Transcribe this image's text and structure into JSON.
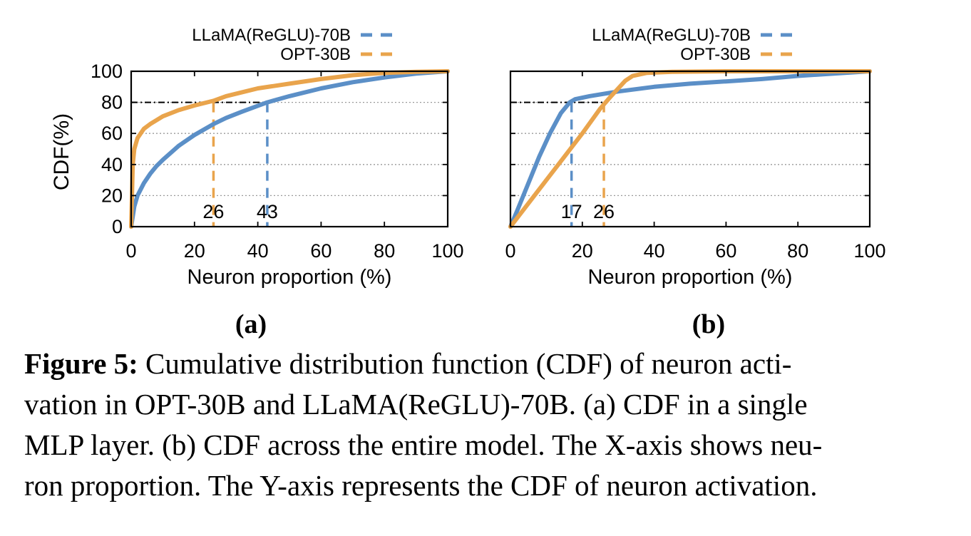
{
  "chart_data": [
    {
      "type": "line",
      "panel_label": "(a)",
      "xlabel": "Neuron proportion (%)",
      "ylabel": "CDF(%)",
      "xlim": [
        0,
        100
      ],
      "ylim": [
        0,
        100
      ],
      "xticks": [
        "0",
        "20",
        "40",
        "60",
        "80",
        "100"
      ],
      "yticks": [
        "0",
        "20",
        "40",
        "60",
        "80",
        "100"
      ],
      "grid": "horizontal dotted",
      "legend": "top-left",
      "series": [
        {
          "name": "LLaMA(ReGLU)-70B",
          "color": "#5b8fc7",
          "x": [
            0,
            1,
            2,
            4,
            6,
            8,
            10,
            15,
            20,
            26,
            30,
            35,
            43,
            50,
            60,
            70,
            80,
            90,
            100
          ],
          "y": [
            0,
            13,
            20,
            28,
            34,
            39,
            43,
            52,
            59,
            66,
            70,
            74,
            80,
            84,
            89,
            93,
            96,
            98.5,
            100
          ]
        },
        {
          "name": "OPT-30B",
          "color": "#e9a44c",
          "x": [
            0,
            0.5,
            1,
            2,
            4,
            6,
            10,
            15,
            20,
            26,
            30,
            40,
            50,
            60,
            70,
            80,
            90,
            100
          ],
          "y": [
            0,
            40,
            50,
            57,
            63,
            66,
            71,
            75,
            78,
            81,
            84,
            89,
            92,
            95,
            97.5,
            99,
            99.7,
            100
          ]
        }
      ],
      "marker_lines": [
        {
          "x": 26,
          "y": 80,
          "label": "26",
          "series": "OPT-30B"
        },
        {
          "x": 43,
          "y": 80,
          "label": "43",
          "series": "LLaMA(ReGLU)-70B"
        }
      ]
    },
    {
      "type": "line",
      "panel_label": "(b)",
      "xlabel": "Neuron proportion (%)",
      "ylabel": "",
      "xlim": [
        0,
        100
      ],
      "ylim": [
        0,
        100
      ],
      "xticks": [
        "0",
        "20",
        "40",
        "60",
        "80",
        "100"
      ],
      "yticks": [],
      "grid": "horizontal dotted",
      "legend": "top-left",
      "series": [
        {
          "name": "LLaMA(ReGLU)-70B",
          "color": "#5b8fc7",
          "x": [
            0,
            2,
            5,
            8,
            11,
            14,
            16.5,
            18,
            22,
            30,
            40,
            50,
            60,
            70,
            80,
            90,
            100
          ],
          "y": [
            0,
            11,
            28,
            45,
            60,
            73,
            80,
            82,
            84,
            87,
            90,
            92,
            93.5,
            95,
            97,
            98.5,
            100
          ]
        },
        {
          "name": "OPT-30B",
          "color": "#e9a44c",
          "x": [
            0,
            5,
            10,
            15,
            20,
            25,
            28,
            30,
            32,
            34,
            38,
            45,
            60,
            80,
            100
          ],
          "y": [
            0,
            15,
            30,
            45,
            60,
            76,
            84,
            89,
            94,
            97,
            99,
            99.7,
            100,
            100,
            100
          ]
        }
      ],
      "marker_lines": [
        {
          "x": 17,
          "y": 80,
          "label": "17",
          "series": "LLaMA(ReGLU)-70B"
        },
        {
          "x": 26,
          "y": 80,
          "label": "26",
          "series": "OPT-30B"
        }
      ]
    }
  ],
  "caption": {
    "label": "Figure 5:",
    "lines": [
      " Cumulative distribution function (CDF) of neuron acti-",
      "vation in OPT-30B and LLaMA(ReGLU)-70B. (a) CDF in a single",
      "MLP layer. (b) CDF across the entire model. The X-axis shows neu-",
      "ron proportion. The Y-axis represents the CDF of neuron activation."
    ]
  }
}
